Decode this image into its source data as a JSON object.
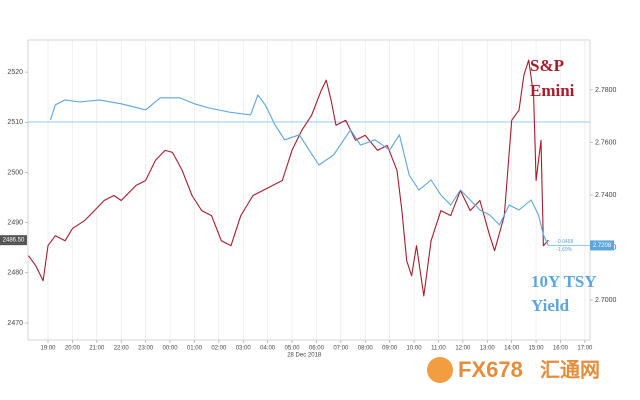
{
  "chart_data": {
    "type": "line",
    "annotations": {
      "sp_line1": "S&P",
      "sp_line2": "Emini",
      "ty_line1": "10Y TSY",
      "ty_line2": "Yield",
      "sp_last": "2486.50",
      "ty_last": "2.7208",
      "ty_change": "-0.0468",
      "ty_change_pct": "-1.69%",
      "date": "28 Dec 2018",
      "watermark": "FX678",
      "watermark_cn": "汇通网"
    },
    "xlim": [
      -0.82,
      22.21
    ],
    "xticks": [
      {
        "value": 0,
        "label": "19:00"
      },
      {
        "value": 1,
        "label": "20:00"
      },
      {
        "value": 2,
        "label": "21:00"
      },
      {
        "value": 3,
        "label": "22:00"
      },
      {
        "value": 4,
        "label": "23:00"
      },
      {
        "value": 5,
        "label": "00:00"
      },
      {
        "value": 6,
        "label": "01:00"
      },
      {
        "value": 7,
        "label": "02:00"
      },
      {
        "value": 8,
        "label": "03:00"
      },
      {
        "value": 9,
        "label": "04:00"
      },
      {
        "value": 10,
        "label": "05:00"
      },
      {
        "value": 11,
        "label": "06:00"
      },
      {
        "value": 12,
        "label": "07:00"
      },
      {
        "value": 13,
        "label": "08:00"
      },
      {
        "value": 14,
        "label": "09:00"
      },
      {
        "value": 15,
        "label": "10:00"
      },
      {
        "value": 16,
        "label": "11:00"
      },
      {
        "value": 17,
        "label": "12:00"
      },
      {
        "value": 18,
        "label": "13:00"
      },
      {
        "value": 19,
        "label": "14:00"
      },
      {
        "value": 20,
        "label": "15:00"
      },
      {
        "value": 21,
        "label": "16:00"
      },
      {
        "value": 22,
        "label": "17:00"
      }
    ],
    "ylim": [
      2466.6,
      2526.4
    ],
    "yticks": [
      2470,
      2480,
      2490,
      2500,
      2510,
      2520
    ],
    "y2lim": [
      2.6848,
      2.799
    ],
    "y2ticks": [
      {
        "value": 2.7,
        "label": "2.7000"
      },
      {
        "value": 2.72,
        "label": "2.7200"
      },
      {
        "value": 2.74,
        "label": "2.7400"
      },
      {
        "value": 2.76,
        "label": "2.7600"
      },
      {
        "value": 2.78,
        "label": "2.7800"
      }
    ],
    "y2_reference": 2.7678,
    "grid": true,
    "series": [
      {
        "color": "#a51d2d",
        "x": [
          -0.8,
          -0.5,
          -0.2,
          0,
          0.3,
          0.7,
          1,
          1.5,
          1.9,
          2.3,
          2.7,
          3,
          3.6,
          4,
          4.4,
          4.8,
          5.1,
          5.5,
          5.9,
          6.3,
          6.7,
          7.1,
          7.5,
          7.9,
          8.4,
          8.8,
          9.2,
          9.6,
          10,
          10.4,
          10.8,
          11.2,
          11.4,
          11.6,
          11.8,
          12.2,
          12.6,
          13,
          13.5,
          13.9,
          14.3,
          14.5,
          14.7,
          14.9,
          15.1,
          15.4,
          15.7,
          16.1,
          16.5,
          16.9,
          17.3,
          17.7,
          18.1,
          18.3,
          18.7,
          19,
          19.3,
          19.5,
          19.7,
          19.9,
          20,
          20.2,
          20.3,
          20.5
        ],
        "values": [
          2483.4,
          2481.4,
          2478.4,
          2485.4,
          2487.4,
          2486.4,
          2488.8,
          2490.4,
          2492.4,
          2494.4,
          2495.4,
          2494.4,
          2497.4,
          2498.4,
          2502.4,
          2504.4,
          2504,
          2500.4,
          2495.4,
          2492.4,
          2491.4,
          2486.4,
          2485.4,
          2491.4,
          2495.4,
          2496.4,
          2497.4,
          2498.4,
          2504.4,
          2508.4,
          2511.4,
          2516.4,
          2518.4,
          2514.4,
          2509.4,
          2510.4,
          2506.4,
          2507.4,
          2504.4,
          2505.4,
          2500.4,
          2492.4,
          2482.4,
          2479.4,
          2485.4,
          2475.4,
          2486.4,
          2492.4,
          2491.4,
          2496.4,
          2492.4,
          2494.4,
          2487.4,
          2484.4,
          2491.4,
          2510.4,
          2512.4,
          2519.4,
          2522.4,
          2515.4,
          2498.4,
          2506.4,
          2485.4,
          2486.5
        ]
      },
      {
        "color": "#5ba6dc",
        "axis": "y2",
        "x": [
          0.1,
          0.3,
          0.7,
          1.3,
          2.1,
          3,
          4,
          4.6,
          5.4,
          6,
          6.6,
          7.4,
          8.3,
          8.6,
          8.9,
          9.3,
          9.7,
          10.3,
          10.7,
          11.1,
          11.7,
          12.4,
          12.8,
          13.4,
          14,
          14.4,
          14.8,
          15.2,
          15.7,
          16.1,
          16.5,
          16.9,
          17.3,
          17.7,
          18.1,
          18.5,
          18.9,
          19.3,
          19.8,
          20.1,
          20.3,
          20.5
        ],
        "values": [
          2.7686,
          2.7743,
          2.7762,
          2.7754,
          2.7762,
          2.7747,
          2.7724,
          2.777,
          2.777,
          2.7747,
          2.7731,
          2.7716,
          2.7705,
          2.7781,
          2.7743,
          2.7667,
          2.761,
          2.7629,
          2.7571,
          2.7514,
          2.7552,
          2.7648,
          2.759,
          2.761,
          2.7571,
          2.7629,
          2.7476,
          2.7419,
          2.7457,
          2.74,
          2.7362,
          2.7419,
          2.7381,
          2.7343,
          2.7324,
          2.7286,
          2.7362,
          2.7343,
          2.7381,
          2.7324,
          2.7248,
          2.7208
        ]
      }
    ]
  }
}
